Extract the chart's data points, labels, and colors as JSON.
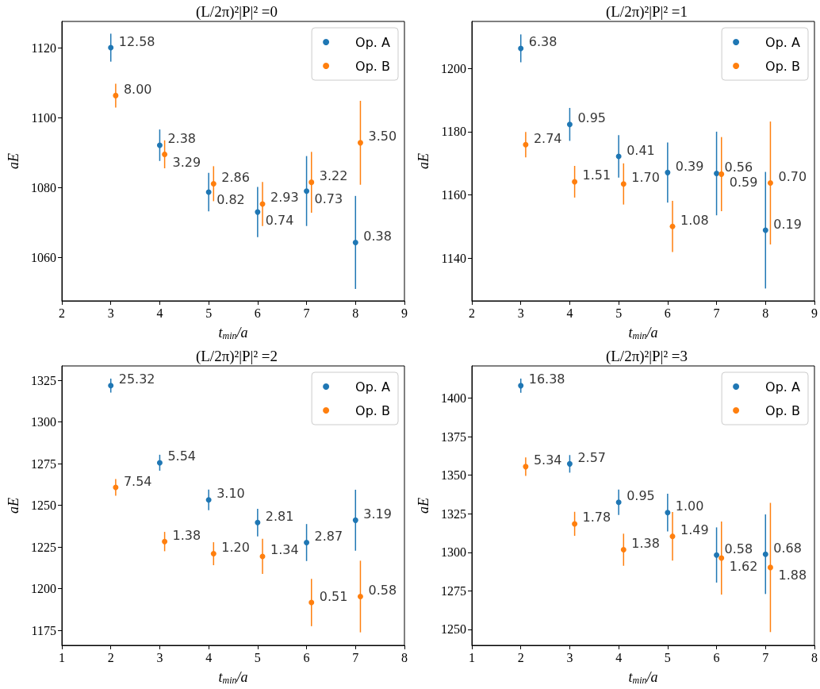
{
  "chart_data": [
    {
      "type": "scatter",
      "title": "(L/2π)²|P|² =0",
      "xlabel": "t$_{min}$/a",
      "ylabel": "aE",
      "xlim": [
        2,
        9
      ],
      "xticks": [
        2,
        3,
        4,
        5,
        6,
        7,
        8,
        9
      ],
      "ylim": [
        1047.6,
        1127.5
      ],
      "yticks": [
        1060,
        1080,
        1100,
        1120
      ],
      "legend": "top right",
      "marker": "circle",
      "series": [
        {
          "name": "Op. A",
          "color": "#1f77b4",
          "x": [
            3,
            4,
            5,
            6,
            7,
            8
          ],
          "values": [
            1120.0,
            1092.1,
            1078.7,
            1073.0,
            1079.0,
            1064.3
          ],
          "errors": [
            4.0,
            4.5,
            5.5,
            7.2,
            10.0,
            13.3
          ]
        },
        {
          "name": "Op. B",
          "color": "#ff7f0e",
          "x": [
            3.1,
            4.1,
            5.1,
            6.1,
            7.1,
            8.1
          ],
          "values": [
            1106.3,
            1089.5,
            1081.1,
            1075.3,
            1081.5,
            1092.8
          ],
          "errors": [
            3.4,
            4.0,
            5.0,
            6.3,
            8.7,
            12.0
          ]
        }
      ],
      "annotations": [
        {
          "text": "12.58",
          "x": 3,
          "y": 1120.0
        },
        {
          "text": "2.38",
          "x": 4,
          "y": 1092.1
        },
        {
          "text": "0.82",
          "x": 5,
          "y": 1078.7
        },
        {
          "text": "0.74",
          "x": 6,
          "y": 1073.0
        },
        {
          "text": "0.73",
          "x": 7,
          "y": 1079.0
        },
        {
          "text": "0.38",
          "x": 8,
          "y": 1064.3
        },
        {
          "text": "8.00",
          "x": 3.1,
          "y": 1106.3
        },
        {
          "text": "3.29",
          "x": 4.1,
          "y": 1089.5
        },
        {
          "text": "2.86",
          "x": 5.1,
          "y": 1081.1
        },
        {
          "text": "2.93",
          "x": 6.1,
          "y": 1075.3
        },
        {
          "text": "3.22",
          "x": 7.1,
          "y": 1081.5
        },
        {
          "text": "3.50",
          "x": 8.1,
          "y": 1092.8
        }
      ]
    },
    {
      "type": "scatter",
      "title": "(L/2π)²|P|² =1",
      "xlabel": "t$_{min}$/a",
      "ylabel": "aE",
      "xlim": [
        2,
        9
      ],
      "xticks": [
        2,
        3,
        4,
        5,
        6,
        7,
        8,
        9
      ],
      "ylim": [
        1126.6,
        1214.8
      ],
      "yticks": [
        1140,
        1160,
        1180,
        1200
      ],
      "legend": "top right",
      "marker": "circle",
      "series": [
        {
          "name": "Op. A",
          "color": "#1f77b4",
          "x": [
            3,
            4,
            5,
            6,
            7,
            8
          ],
          "values": [
            1206.3,
            1182.3,
            1172.2,
            1167.1,
            1166.8,
            1148.9
          ],
          "errors": [
            4.4,
            5.2,
            6.7,
            9.5,
            13.2,
            18.4
          ]
        },
        {
          "name": "Op. B",
          "color": "#ff7f0e",
          "x": [
            3.1,
            4.1,
            5.1,
            6.1,
            7.1,
            8.1
          ],
          "values": [
            1175.9,
            1164.2,
            1163.5,
            1150.1,
            1166.6,
            1163.8
          ],
          "errors": [
            4.0,
            5.0,
            6.5,
            8.1,
            11.7,
            19.4
          ]
        }
      ],
      "annotations": [
        {
          "text": "6.38",
          "x": 3,
          "y": 1206.3
        },
        {
          "text": "0.95",
          "x": 4,
          "y": 1182.3
        },
        {
          "text": "0.41",
          "x": 5,
          "y": 1172.2
        },
        {
          "text": "0.39",
          "x": 6,
          "y": 1167.1
        },
        {
          "text": "0.56",
          "x": 7,
          "y": 1166.8
        },
        {
          "text": "0.19",
          "x": 8,
          "y": 1148.9
        },
        {
          "text": "2.74",
          "x": 3.1,
          "y": 1175.9
        },
        {
          "text": "1.51",
          "x": 4.1,
          "y": 1164.2
        },
        {
          "text": "1.70",
          "x": 5.1,
          "y": 1163.5
        },
        {
          "text": "1.08",
          "x": 6.1,
          "y": 1150.1
        },
        {
          "text": "0.59",
          "x": 7.1,
          "y": 1166.6
        },
        {
          "text": "0.70",
          "x": 8.1,
          "y": 1163.8
        }
      ]
    },
    {
      "type": "scatter",
      "title": "(L/2π)²|P|² =2",
      "xlabel": "t$_{min}$/a",
      "ylabel": "aE",
      "xlim": [
        1,
        8
      ],
      "xticks": [
        1,
        2,
        3,
        4,
        5,
        6,
        7,
        8
      ],
      "ylim": [
        1166,
        1333.7
      ],
      "yticks": [
        1175,
        1200,
        1225,
        1250,
        1275,
        1300,
        1325
      ],
      "legend": "top right",
      "marker": "circle",
      "series": [
        {
          "name": "Op. A",
          "color": "#1f77b4",
          "x": [
            2,
            3,
            4,
            5,
            6,
            7
          ],
          "values": [
            1321.9,
            1275.6,
            1253.3,
            1239.7,
            1227.7,
            1241.1
          ],
          "errors": [
            4.2,
            4.8,
            6.2,
            8.3,
            11.1,
            18.3
          ]
        },
        {
          "name": "Op. B",
          "color": "#ff7f0e",
          "x": [
            2.1,
            3.1,
            4.1,
            5.1,
            6.1,
            7.1
          ],
          "values": [
            1260.8,
            1228.3,
            1221.0,
            1219.4,
            1191.7,
            1195.3
          ],
          "errors": [
            5.0,
            5.8,
            6.9,
            10.5,
            14.2,
            21.5
          ]
        }
      ],
      "annotations": [
        {
          "text": "25.32",
          "x": 2,
          "y": 1321.9
        },
        {
          "text": "5.54",
          "x": 3,
          "y": 1275.6
        },
        {
          "text": "3.10",
          "x": 4,
          "y": 1253.3
        },
        {
          "text": "2.81",
          "x": 5,
          "y": 1239.7
        },
        {
          "text": "2.87",
          "x": 6,
          "y": 1227.7
        },
        {
          "text": "3.19",
          "x": 7,
          "y": 1241.1
        },
        {
          "text": "7.54",
          "x": 2.1,
          "y": 1260.8
        },
        {
          "text": "1.38",
          "x": 3.1,
          "y": 1228.3
        },
        {
          "text": "1.20",
          "x": 4.1,
          "y": 1221.0
        },
        {
          "text": "1.34",
          "x": 5.1,
          "y": 1219.4
        },
        {
          "text": "0.51",
          "x": 6.1,
          "y": 1191.7
        },
        {
          "text": "0.58",
          "x": 7.1,
          "y": 1195.3
        }
      ]
    },
    {
      "type": "scatter",
      "title": "(L/2π)²|P|² =3",
      "xlabel": "t$_{min}$/a",
      "ylabel": "aE",
      "xlim": [
        1,
        8
      ],
      "xticks": [
        1,
        2,
        3,
        4,
        5,
        6,
        7,
        8
      ],
      "ylim": [
        1239.7,
        1420.9
      ],
      "yticks": [
        1250,
        1275,
        1300,
        1325,
        1350,
        1375,
        1400
      ],
      "legend": "top right",
      "marker": "circle",
      "series": [
        {
          "name": "Op. A",
          "color": "#1f77b4",
          "x": [
            2,
            3,
            4,
            5,
            6,
            7
          ],
          "values": [
            1408.1,
            1357.4,
            1332.5,
            1325.8,
            1298.3,
            1298.8
          ],
          "errors": [
            4.6,
            5.7,
            8.2,
            12.2,
            17.9,
            25.8
          ]
        },
        {
          "name": "Op. B",
          "color": "#ff7f0e",
          "x": [
            2.1,
            3.1,
            4.1,
            5.1,
            6.1,
            7.1
          ],
          "values": [
            1355.6,
            1318.5,
            1301.7,
            1310.4,
            1296.3,
            1290.2
          ],
          "errors": [
            6.0,
            7.8,
            10.4,
            15.8,
            23.7,
            41.9
          ]
        }
      ],
      "annotations": [
        {
          "text": "16.38",
          "x": 2,
          "y": 1408.1
        },
        {
          "text": "2.57",
          "x": 3,
          "y": 1357.4
        },
        {
          "text": "0.95",
          "x": 4,
          "y": 1332.5
        },
        {
          "text": "1.00",
          "x": 5,
          "y": 1325.8
        },
        {
          "text": "0.58",
          "x": 6,
          "y": 1298.3
        },
        {
          "text": "0.68",
          "x": 7,
          "y": 1298.8
        },
        {
          "text": "5.34",
          "x": 2.1,
          "y": 1355.6
        },
        {
          "text": "1.78",
          "x": 3.1,
          "y": 1318.5
        },
        {
          "text": "1.38",
          "x": 4.1,
          "y": 1301.7
        },
        {
          "text": "1.49",
          "x": 5.1,
          "y": 1310.4
        },
        {
          "text": "1.62",
          "x": 6.1,
          "y": 1296.3
        },
        {
          "text": "1.88",
          "x": 7.1,
          "y": 1290.2
        }
      ]
    }
  ]
}
